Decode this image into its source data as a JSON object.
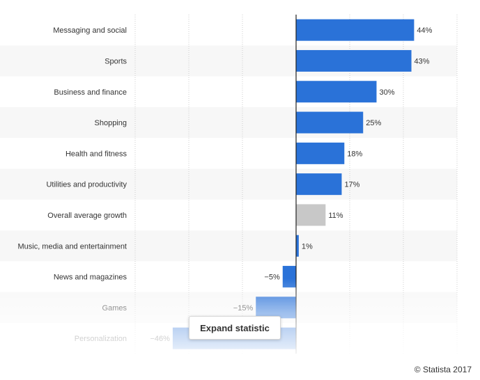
{
  "chart_data": {
    "type": "bar",
    "orientation": "horizontal",
    "categories": [
      "Messaging and social",
      "Sports",
      "Business and finance",
      "Shopping",
      "Health and fitness",
      "Utilities and productivity",
      "Overall average growth",
      "Music, media and entertainment",
      "News and magazines",
      "Games",
      "Personalization"
    ],
    "values": [
      44,
      43,
      30,
      25,
      18,
      17,
      11,
      1,
      -5,
      -15,
      -46
    ],
    "value_labels": [
      "44%",
      "43%",
      "30%",
      "25%",
      "18%",
      "17%",
      "11%",
      "1%",
      "−5%",
      "−15%",
      "−46%"
    ],
    "highlight_category": "Overall average growth",
    "unit": "%",
    "xlim": [
      -60,
      60
    ],
    "grid": true,
    "colors": {
      "bar": "#2a72d8",
      "highlight_bar": "#c8c8c8",
      "row_band": "#f7f7f7",
      "grid": "#cccccc",
      "zero_line": "#222222"
    }
  },
  "ui": {
    "expand_label": "Expand statistic",
    "copyright": "© Statista 2017"
  }
}
